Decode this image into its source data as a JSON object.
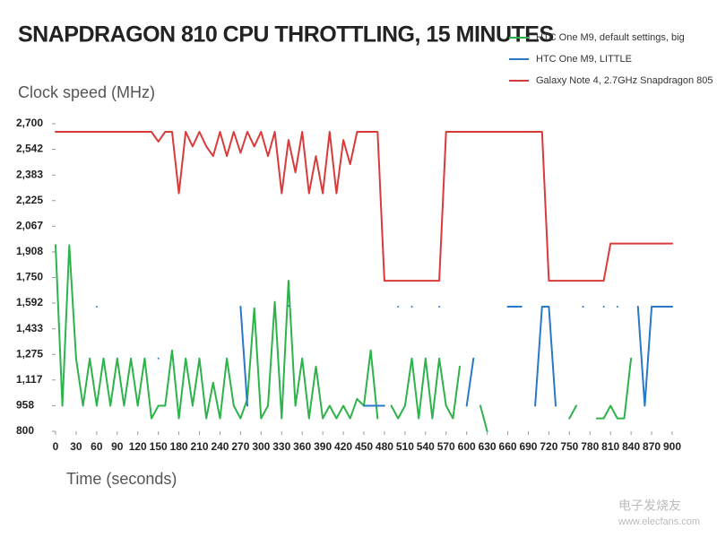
{
  "chart_data": {
    "type": "line",
    "title": "SNAPDRAGON 810 CPU THROTTLING, 15 MINUTES",
    "y_label": "Clock speed (MHz)",
    "x_label": "Time (seconds)",
    "watermark": [
      "电子发烧友",
      "www.elecfans.com"
    ],
    "x": [
      0,
      10,
      20,
      30,
      40,
      50,
      60,
      70,
      80,
      90,
      100,
      110,
      120,
      130,
      140,
      150,
      160,
      170,
      180,
      190,
      200,
      210,
      220,
      230,
      240,
      250,
      260,
      270,
      280,
      290,
      300,
      310,
      320,
      330,
      340,
      350,
      360,
      370,
      380,
      390,
      400,
      410,
      420,
      430,
      440,
      450,
      460,
      470,
      480,
      490,
      500,
      510,
      520,
      530,
      540,
      550,
      560,
      570,
      580,
      590,
      600,
      610,
      620,
      630,
      640,
      650,
      660,
      670,
      680,
      690,
      700,
      710,
      720,
      730,
      740,
      750,
      760,
      770,
      780,
      790,
      800,
      810,
      820,
      830,
      840,
      850,
      860,
      870,
      880,
      890,
      900
    ],
    "series": [
      {
        "name": "HTC One M9, default settings, big",
        "color": "#2db34a",
        "values": [
          1950,
          958,
          1950,
          1250,
          958,
          1250,
          958,
          1250,
          958,
          1250,
          958,
          1250,
          958,
          1250,
          880,
          958,
          958,
          1300,
          880,
          1250,
          958,
          1250,
          880,
          1100,
          880,
          1250,
          958,
          880,
          1000,
          1560,
          880,
          958,
          1600,
          880,
          1730,
          958,
          1250,
          880,
          1200,
          880,
          958,
          880,
          958,
          880,
          1000,
          958,
          1300,
          880,
          null,
          958,
          880,
          958,
          1250,
          880,
          1250,
          880,
          1250,
          958,
          880,
          1200,
          null,
          null,
          958,
          800,
          null,
          null,
          null,
          null,
          null,
          null,
          null,
          null,
          null,
          null,
          null,
          880,
          958,
          null,
          null,
          880,
          880,
          958,
          880,
          880,
          1250,
          null,
          null,
          null,
          null,
          null,
          null
        ]
      },
      {
        "name": "HTC One M9, LITTLE",
        "color": "#2a78c8",
        "values": [
          null,
          null,
          null,
          null,
          null,
          null,
          1570,
          null,
          null,
          null,
          null,
          null,
          null,
          null,
          null,
          1250,
          null,
          null,
          null,
          null,
          null,
          null,
          null,
          null,
          null,
          null,
          null,
          1570,
          958,
          null,
          null,
          null,
          null,
          null,
          1575,
          null,
          null,
          null,
          null,
          null,
          null,
          null,
          null,
          null,
          null,
          958,
          958,
          958,
          958,
          null,
          1570,
          null,
          1570,
          null,
          null,
          null,
          1570,
          null,
          null,
          null,
          958,
          1250,
          null,
          null,
          null,
          null,
          1570,
          1570,
          1570,
          null,
          958,
          1570,
          1570,
          958,
          null,
          null,
          null,
          1570,
          null,
          null,
          1570,
          null,
          1570,
          null,
          null,
          1570,
          958,
          1570,
          1570,
          1570,
          1570
        ]
      },
      {
        "name": "Galaxy Note 4, 2.7GHz Snapdragon 805",
        "color": "#d93a3a",
        "values": [
          2650,
          2650,
          2650,
          2650,
          2650,
          2650,
          2650,
          2650,
          2650,
          2650,
          2650,
          2650,
          2650,
          2650,
          2650,
          2590,
          2650,
          2650,
          2270,
          2650,
          2560,
          2650,
          2560,
          2500,
          2650,
          2500,
          2650,
          2520,
          2650,
          2560,
          2650,
          2500,
          2650,
          2270,
          2600,
          2400,
          2650,
          2270,
          2500,
          2270,
          2650,
          2270,
          2600,
          2450,
          2650,
          2650,
          2650,
          2650,
          1730,
          1730,
          1730,
          1730,
          1730,
          1730,
          1730,
          1730,
          1730,
          2650,
          2650,
          2650,
          2650,
          2650,
          2650,
          2650,
          2650,
          2650,
          2650,
          2650,
          2650,
          2650,
          2650,
          2650,
          1730,
          1730,
          1730,
          1730,
          1730,
          1730,
          1730,
          1730,
          1730,
          1960,
          1960,
          1960,
          1960,
          1960,
          1960,
          1960,
          1960,
          1960,
          1960
        ]
      }
    ],
    "xlim": [
      0,
      900
    ],
    "xticks": [
      0,
      30,
      60,
      90,
      120,
      150,
      180,
      210,
      240,
      270,
      300,
      330,
      360,
      390,
      420,
      450,
      480,
      510,
      540,
      570,
      600,
      630,
      660,
      690,
      720,
      750,
      780,
      810,
      840,
      870,
      900
    ],
    "ylim": [
      800,
      2700
    ],
    "yticks": [
      800,
      958,
      {
        "value": 1117,
        "label": "1,117"
      },
      {
        "value": 1275,
        "label": "1,275"
      },
      {
        "value": 1433,
        "label": "1,433"
      },
      {
        "value": 1592,
        "label": "1,592"
      },
      {
        "value": 1750,
        "label": "1,750"
      },
      {
        "value": 1908,
        "label": "1,908"
      },
      {
        "value": 2067,
        "label": "2,067"
      },
      {
        "value": 2225,
        "label": "2,225"
      },
      {
        "value": 2383,
        "label": "2,383"
      },
      {
        "value": 2542,
        "label": "2,542"
      },
      {
        "value": 2700,
        "label": "2,700"
      }
    ],
    "grid": false
  }
}
